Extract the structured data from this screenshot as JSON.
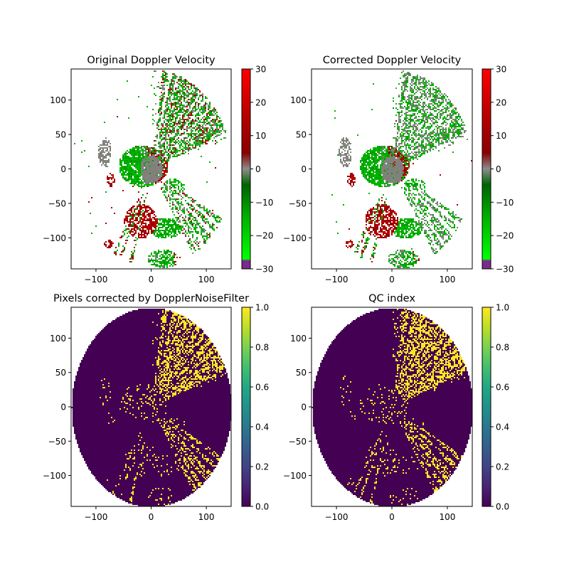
{
  "figure": {
    "background": "#ffffff"
  },
  "chart_data": [
    {
      "type": "heatmap",
      "title": "Original Doppler Velocity",
      "field": "velocity",
      "variant": "original",
      "xlim": [
        -145,
        145
      ],
      "ylim": [
        -145,
        145
      ],
      "xticks": [
        -100,
        0,
        100
      ],
      "yticks": [
        -100,
        -50,
        0,
        50,
        100
      ],
      "colorbar": {
        "range": [
          -30,
          30
        ],
        "ticks": [
          -30,
          -20,
          -10,
          0,
          10,
          20,
          30
        ],
        "colormap": "doppler-green-gray-red"
      },
      "grid": false
    },
    {
      "type": "heatmap",
      "title": "Corrected Doppler Velocity",
      "field": "velocity",
      "variant": "corrected",
      "xlim": [
        -145,
        145
      ],
      "ylim": [
        -145,
        145
      ],
      "xticks": [
        -100,
        0,
        100
      ],
      "yticks": [
        -100,
        -50,
        0,
        50,
        100
      ],
      "colorbar": {
        "range": [
          -30,
          30
        ],
        "ticks": [
          -30,
          -20,
          -10,
          0,
          10,
          20,
          30
        ],
        "colormap": "doppler-green-gray-red"
      },
      "grid": false
    },
    {
      "type": "heatmap",
      "title": "Pixels corrected by DopplerNoiseFilter",
      "field": "mask",
      "variant": "corrected-pixels",
      "xlim": [
        -145,
        145
      ],
      "ylim": [
        -145,
        145
      ],
      "xticks": [
        -100,
        0,
        100
      ],
      "yticks": [
        -100,
        -50,
        0,
        50,
        100
      ],
      "colorbar": {
        "range": [
          0,
          1
        ],
        "ticks": [
          0.0,
          0.2,
          0.4,
          0.6,
          0.8,
          1.0
        ],
        "colormap": "viridis"
      },
      "grid": false
    },
    {
      "type": "heatmap",
      "title": "QC index",
      "field": "mask",
      "variant": "qc-index",
      "xlim": [
        -145,
        145
      ],
      "ylim": [
        -145,
        145
      ],
      "xticks": [
        -100,
        0,
        100
      ],
      "yticks": [
        -100,
        -50,
        0,
        50,
        100
      ],
      "colorbar": {
        "range": [
          0,
          1
        ],
        "ticks": [
          0.0,
          0.2,
          0.4,
          0.6,
          0.8,
          1.0
        ],
        "colormap": "viridis"
      },
      "grid": false
    }
  ]
}
